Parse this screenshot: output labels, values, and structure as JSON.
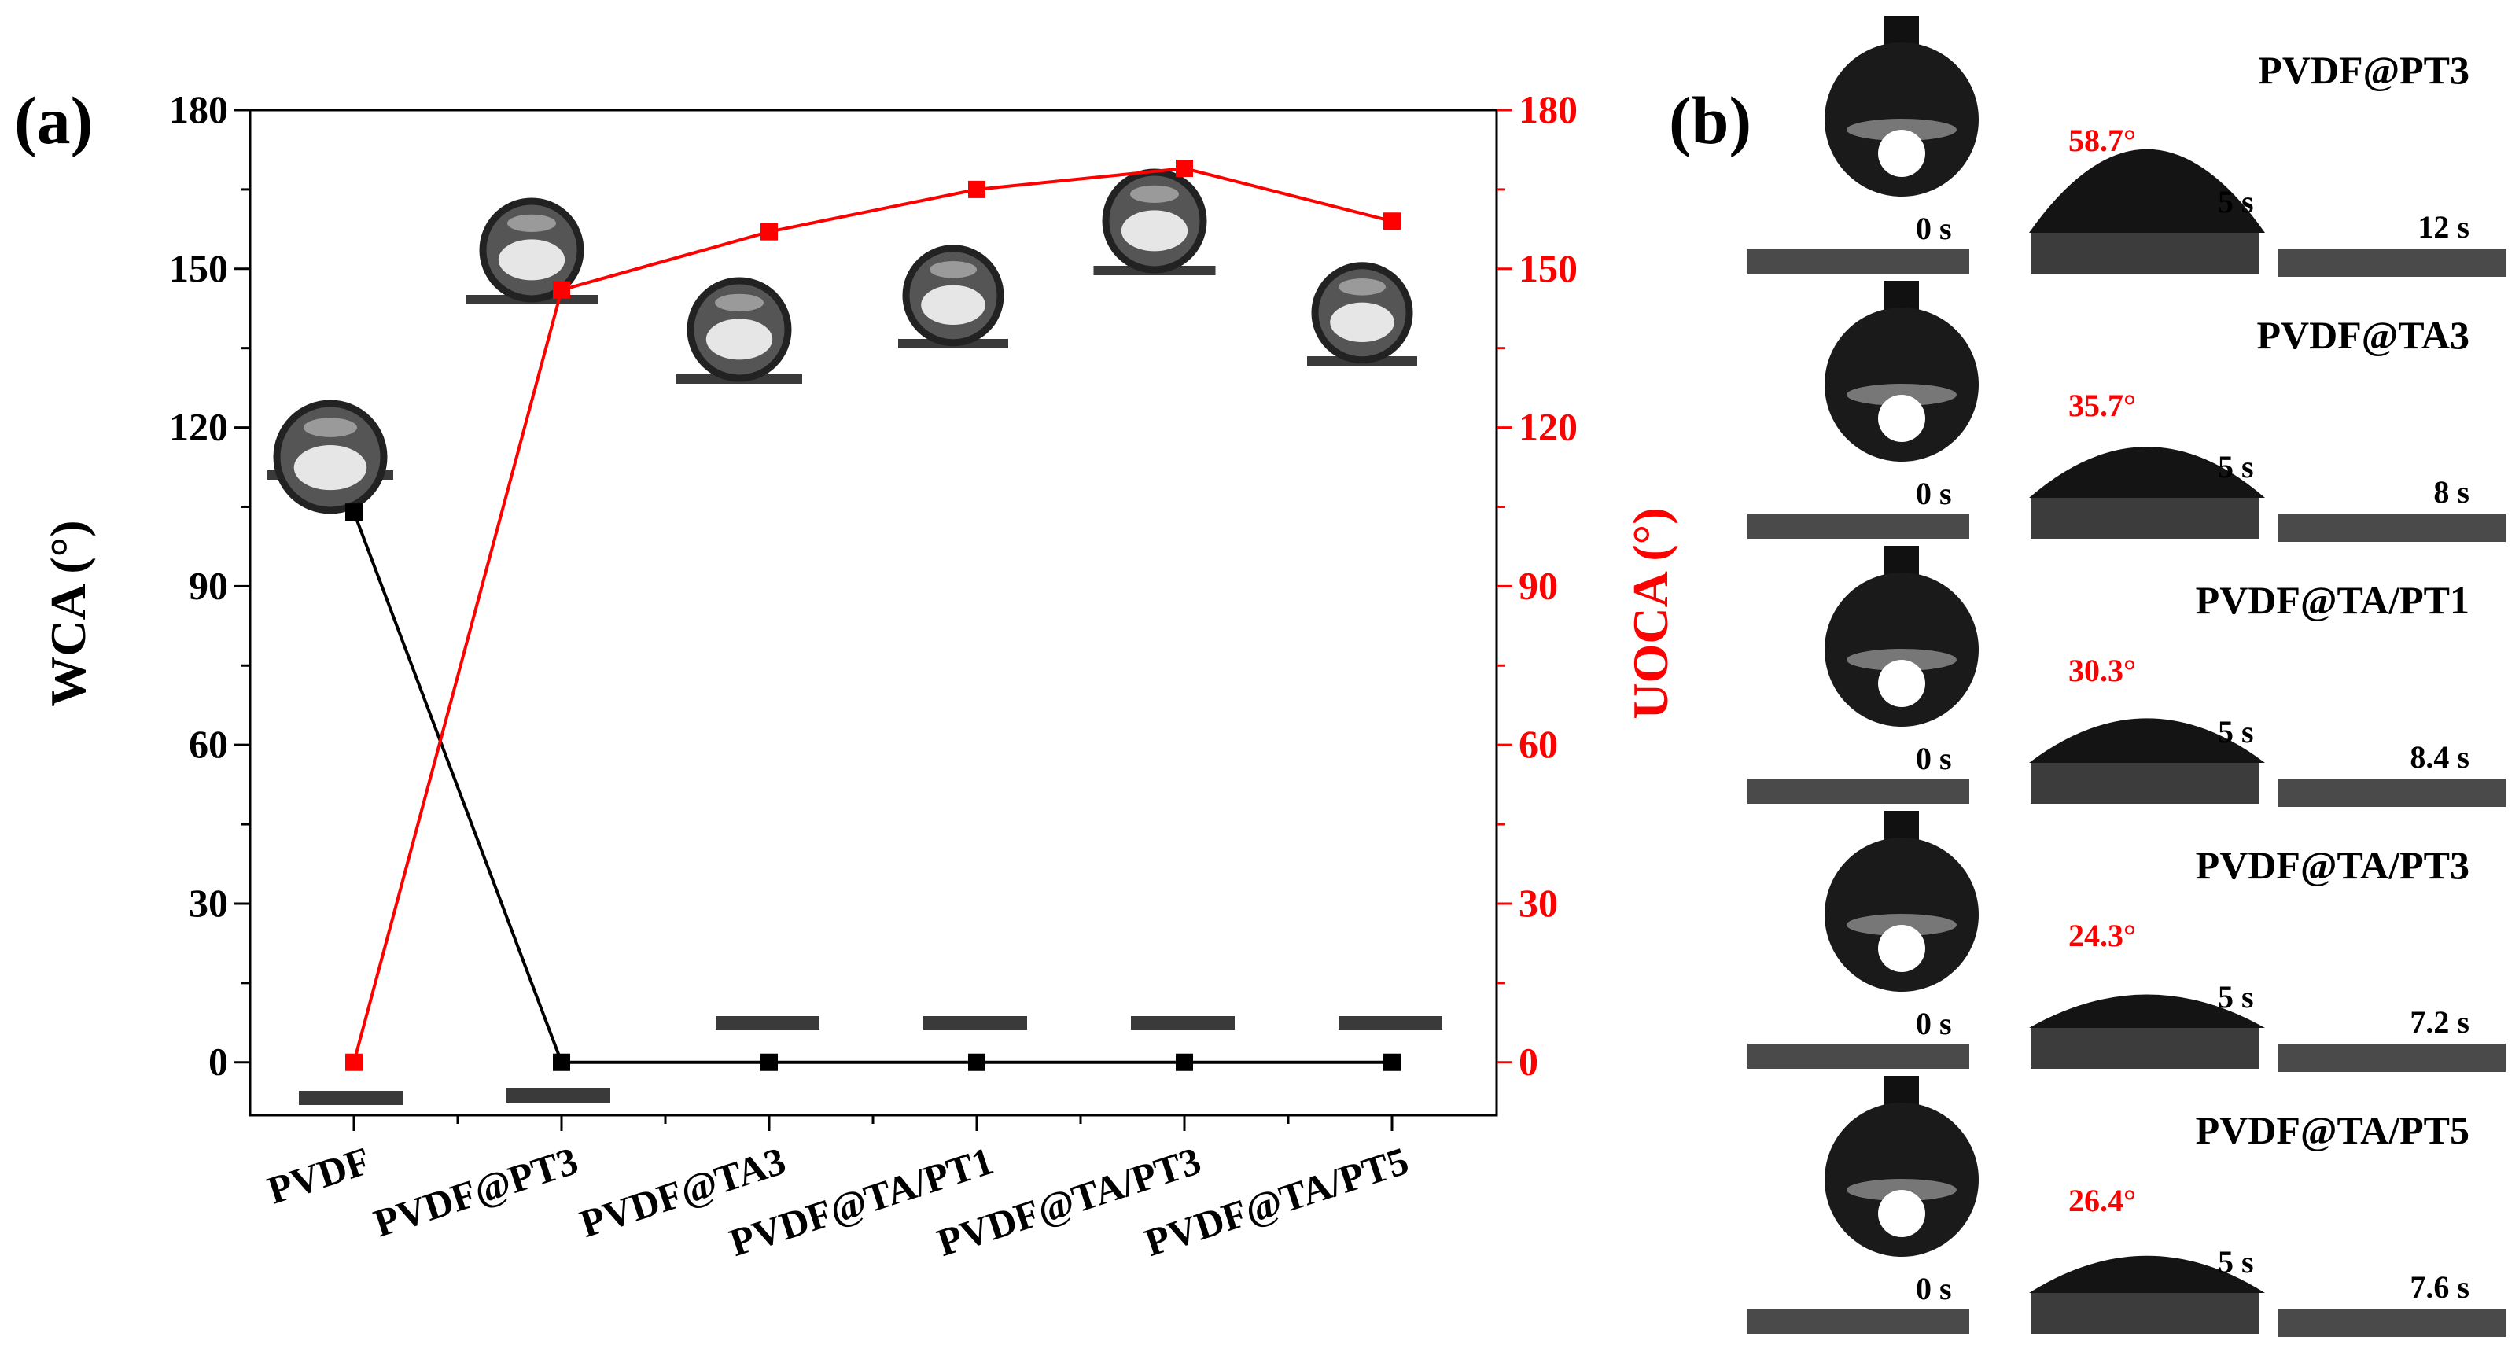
{
  "panel_a": {
    "label": "(a)"
  },
  "panel_b": {
    "label": "(b)",
    "rows": [
      {
        "title": "PVDF@PT3",
        "angle": "58.7°",
        "t0": "0 s",
        "t1": "5 s",
        "t2": "12 s",
        "cap": 0.9
      },
      {
        "title": "PVDF@TA3",
        "angle": "35.7°",
        "t0": "0 s",
        "t1": "5 s",
        "t2": "8 s",
        "cap": 0.55
      },
      {
        "title": "PVDF@TA/PT1",
        "angle": "30.3°",
        "t0": "0 s",
        "t1": "5 s",
        "t2": "8.4 s",
        "cap": 0.48
      },
      {
        "title": "PVDF@TA/PT3",
        "angle": "24.3°",
        "t0": "0 s",
        "t1": "5 s",
        "t2": "7.2 s",
        "cap": 0.36
      },
      {
        "title": "PVDF@TA/PT5",
        "angle": "26.4°",
        "t0": "0 s",
        "t1": "5 s",
        "t2": "7.6 s",
        "cap": 0.4
      }
    ]
  },
  "colors": {
    "wca": "#000000",
    "uoca": "#ff0000",
    "droplet": "#222222",
    "substrate": "#3a3a3a"
  },
  "chart_data": {
    "type": "line",
    "categories": [
      "PVDF",
      "PVDF@PT3",
      "PVDF@TA3",
      "PVDF@TA/PT1",
      "PVDF@TA/PT3",
      "PVDF@TA/PT5"
    ],
    "ylabel": "WCA (°)",
    "y2label": "UOCA (°)",
    "ylim": [
      -10,
      180
    ],
    "yticks": [
      0,
      30,
      60,
      90,
      120,
      150,
      180
    ],
    "series": [
      {
        "name": "WCA (°)",
        "axis": "left",
        "color": "#000000",
        "values": [
          104,
          0,
          0,
          0,
          0,
          0
        ]
      },
      {
        "name": "UOCA (°)",
        "axis": "right",
        "color": "#ff0000",
        "values": [
          0,
          146,
          157,
          165,
          169,
          159
        ]
      }
    ],
    "insets": [
      {
        "category": "PVDF",
        "type": "water-droplet",
        "contact_angle": 104
      },
      {
        "category": "PVDF@PT3",
        "type": "oil-droplet",
        "contact_angle": 146
      },
      {
        "category": "PVDF@TA3",
        "type": "oil-droplet",
        "contact_angle": 157
      },
      {
        "category": "PVDF@TA/PT1",
        "type": "oil-droplet",
        "contact_angle": 165
      },
      {
        "category": "PVDF@TA/PT3",
        "type": "oil-droplet",
        "contact_angle": 169
      },
      {
        "category": "PVDF@TA/PT5",
        "type": "oil-droplet",
        "contact_angle": 159
      }
    ]
  }
}
